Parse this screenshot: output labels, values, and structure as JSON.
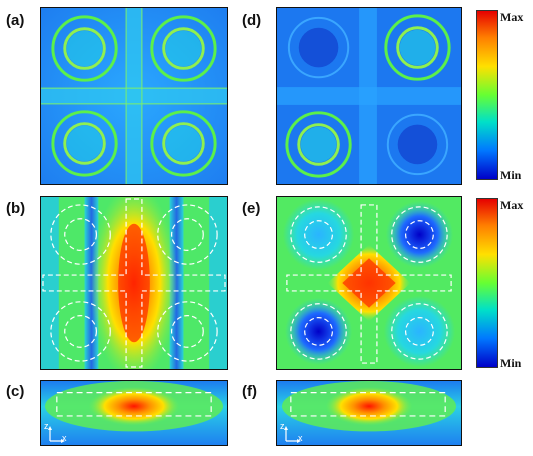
{
  "figure": {
    "panels": [
      {
        "id": "a",
        "label": "(a)"
      },
      {
        "id": "b",
        "label": "(b)"
      },
      {
        "id": "c",
        "label": "(c)"
      },
      {
        "id": "d",
        "label": "(d)"
      },
      {
        "id": "e",
        "label": "(e)"
      },
      {
        "id": "f",
        "label": "(f)"
      }
    ],
    "colorbars": [
      {
        "max_label": "Max",
        "min_label": "Min"
      },
      {
        "max_label": "Max",
        "min_label": "Min"
      }
    ],
    "axis_labels": {
      "z": "z",
      "x": "x"
    },
    "colors": {
      "field_blue": "#1e8cff",
      "field_cyan": "#20d8e8",
      "field_green": "#5cf04a",
      "field_red": "#ff2a00",
      "dashed_outline": "#ffffff"
    }
  }
}
